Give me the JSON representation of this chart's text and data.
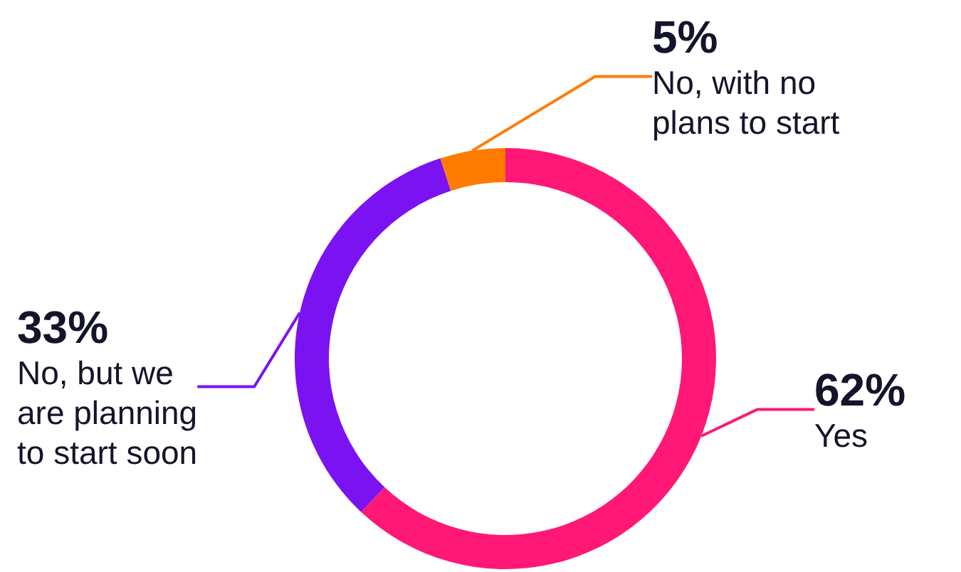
{
  "chart_data": {
    "type": "donut",
    "categories": [
      "Yes",
      "No, but we\nare planning\nto start soon",
      "No, with no\nplans to start"
    ],
    "values": [
      62,
      33,
      5
    ],
    "colors": [
      "#ff1876",
      "#7b12f2",
      "#ff7b00"
    ],
    "value_labels": [
      "62%",
      "33%",
      "5%"
    ],
    "legend": false
  }
}
